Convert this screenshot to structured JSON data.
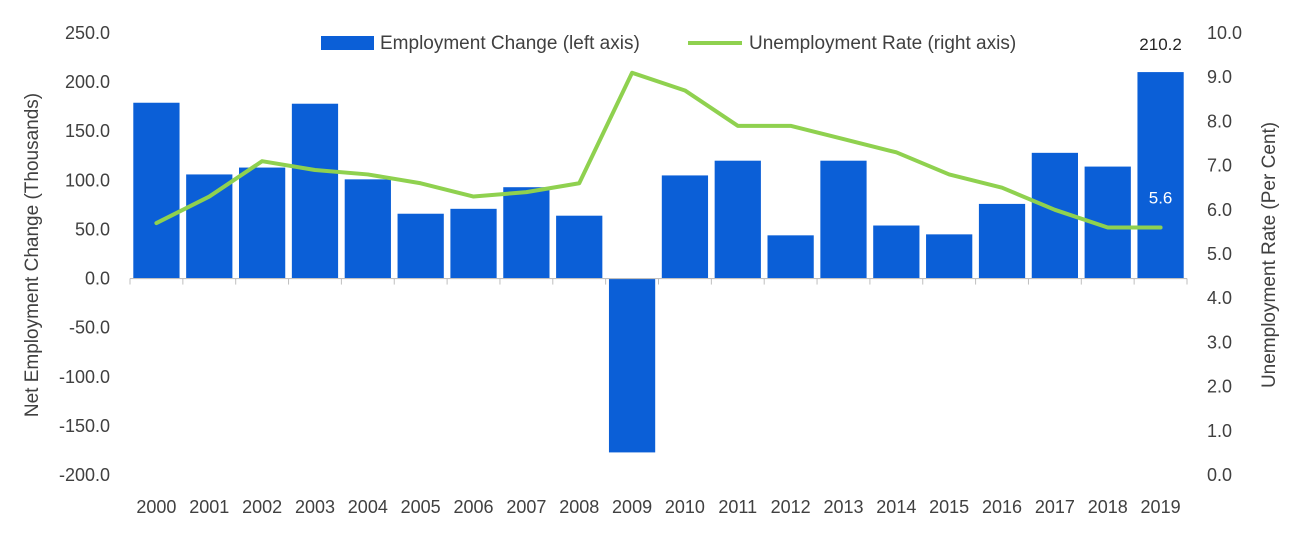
{
  "chart_data": {
    "type": "bar+line",
    "title": "",
    "categories": [
      "2000",
      "2001",
      "2002",
      "2003",
      "2004",
      "2005",
      "2006",
      "2007",
      "2008",
      "2009",
      "2010",
      "2011",
      "2012",
      "2013",
      "2014",
      "2015",
      "2016",
      "2017",
      "2018",
      "2019"
    ],
    "series": [
      {
        "name": "Employment Change (left axis)",
        "type": "bar",
        "axis": "left",
        "color": "#0b5fd7",
        "values": [
          179,
          106,
          113,
          178,
          101,
          66,
          71,
          93,
          64,
          -177,
          105,
          120,
          44,
          120,
          54,
          45,
          76,
          128,
          114,
          210.2
        ]
      },
      {
        "name": "Unemployment Rate (right axis)",
        "type": "line",
        "axis": "right",
        "color": "#8fd14f",
        "values": [
          5.7,
          6.3,
          7.1,
          6.9,
          6.8,
          6.6,
          6.3,
          6.4,
          6.6,
          9.1,
          8.7,
          7.9,
          7.9,
          7.6,
          7.3,
          6.8,
          6.5,
          6.0,
          5.6,
          5.6
        ]
      }
    ],
    "left_axis": {
      "label": "Net Employment Change (Thousands)",
      "ylim": [
        -200,
        250
      ],
      "ticks": [
        250,
        200,
        150,
        100,
        50,
        0,
        -50,
        -100,
        -150,
        -200
      ],
      "tick_labels": [
        "250.0",
        "200.0",
        "150.0",
        "100.0",
        "50.0",
        "0.0",
        "-50.0",
        "-100.0",
        "-150.0",
        "-200.0"
      ]
    },
    "right_axis": {
      "label": "Unemployment Rate (Per Cent)",
      "ylim": [
        0,
        10
      ],
      "ticks": [
        10,
        9,
        8,
        7,
        6,
        5,
        4,
        3,
        2,
        1,
        0
      ],
      "tick_labels": [
        "10.0",
        "9.0",
        "8.0",
        "7.0",
        "6.0",
        "5.0",
        "4.0",
        "3.0",
        "2.0",
        "1.0",
        "0.0"
      ]
    },
    "annotations": [
      {
        "series": 0,
        "index": 19,
        "text": "210.2",
        "color": "#262626"
      },
      {
        "series": 1,
        "index": 19,
        "text": "5.6",
        "color": "#ffffff"
      }
    ],
    "legend": {
      "placement": "top-center"
    },
    "grid": false
  }
}
